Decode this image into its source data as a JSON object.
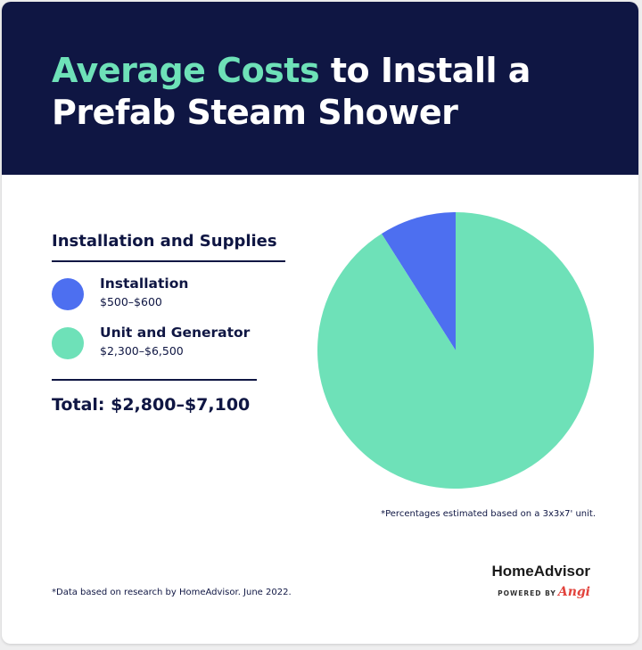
{
  "title": {
    "accent": "Average Costs",
    "rest": " to Install a",
    "line2": "Prefab Steam Shower"
  },
  "legend": {
    "heading": "Installation and Supplies",
    "items": [
      {
        "label": "Installation",
        "range": "$500–$600",
        "color": "#4d6ff0"
      },
      {
        "label": "Unit and Generator",
        "range": "$2,300–$6,500",
        "color": "#6ee1b8"
      }
    ],
    "total": "Total: $2,800–$7,100"
  },
  "notes": {
    "percentages": "*Percentages estimated based on a 3x3x7' unit.",
    "data_source": "*Data based on research by HomeAdvisor. June 2022."
  },
  "brand": {
    "name": "HomeAdvisor",
    "powered_by": "POWERED BY",
    "angi": "Angi"
  },
  "colors": {
    "header_bg": "#0f1643",
    "accent": "#6ee1b8",
    "installation": "#4d6ff0",
    "unit_generator": "#6ee1b8"
  },
  "chart_data": {
    "type": "pie",
    "title": "Average Costs to Install a Prefab Steam Shower",
    "categories": [
      "Installation",
      "Unit and Generator"
    ],
    "values": [
      9,
      91
    ],
    "start_angle_deg": 0,
    "direction": "counterclockwise",
    "legend": "left"
  }
}
